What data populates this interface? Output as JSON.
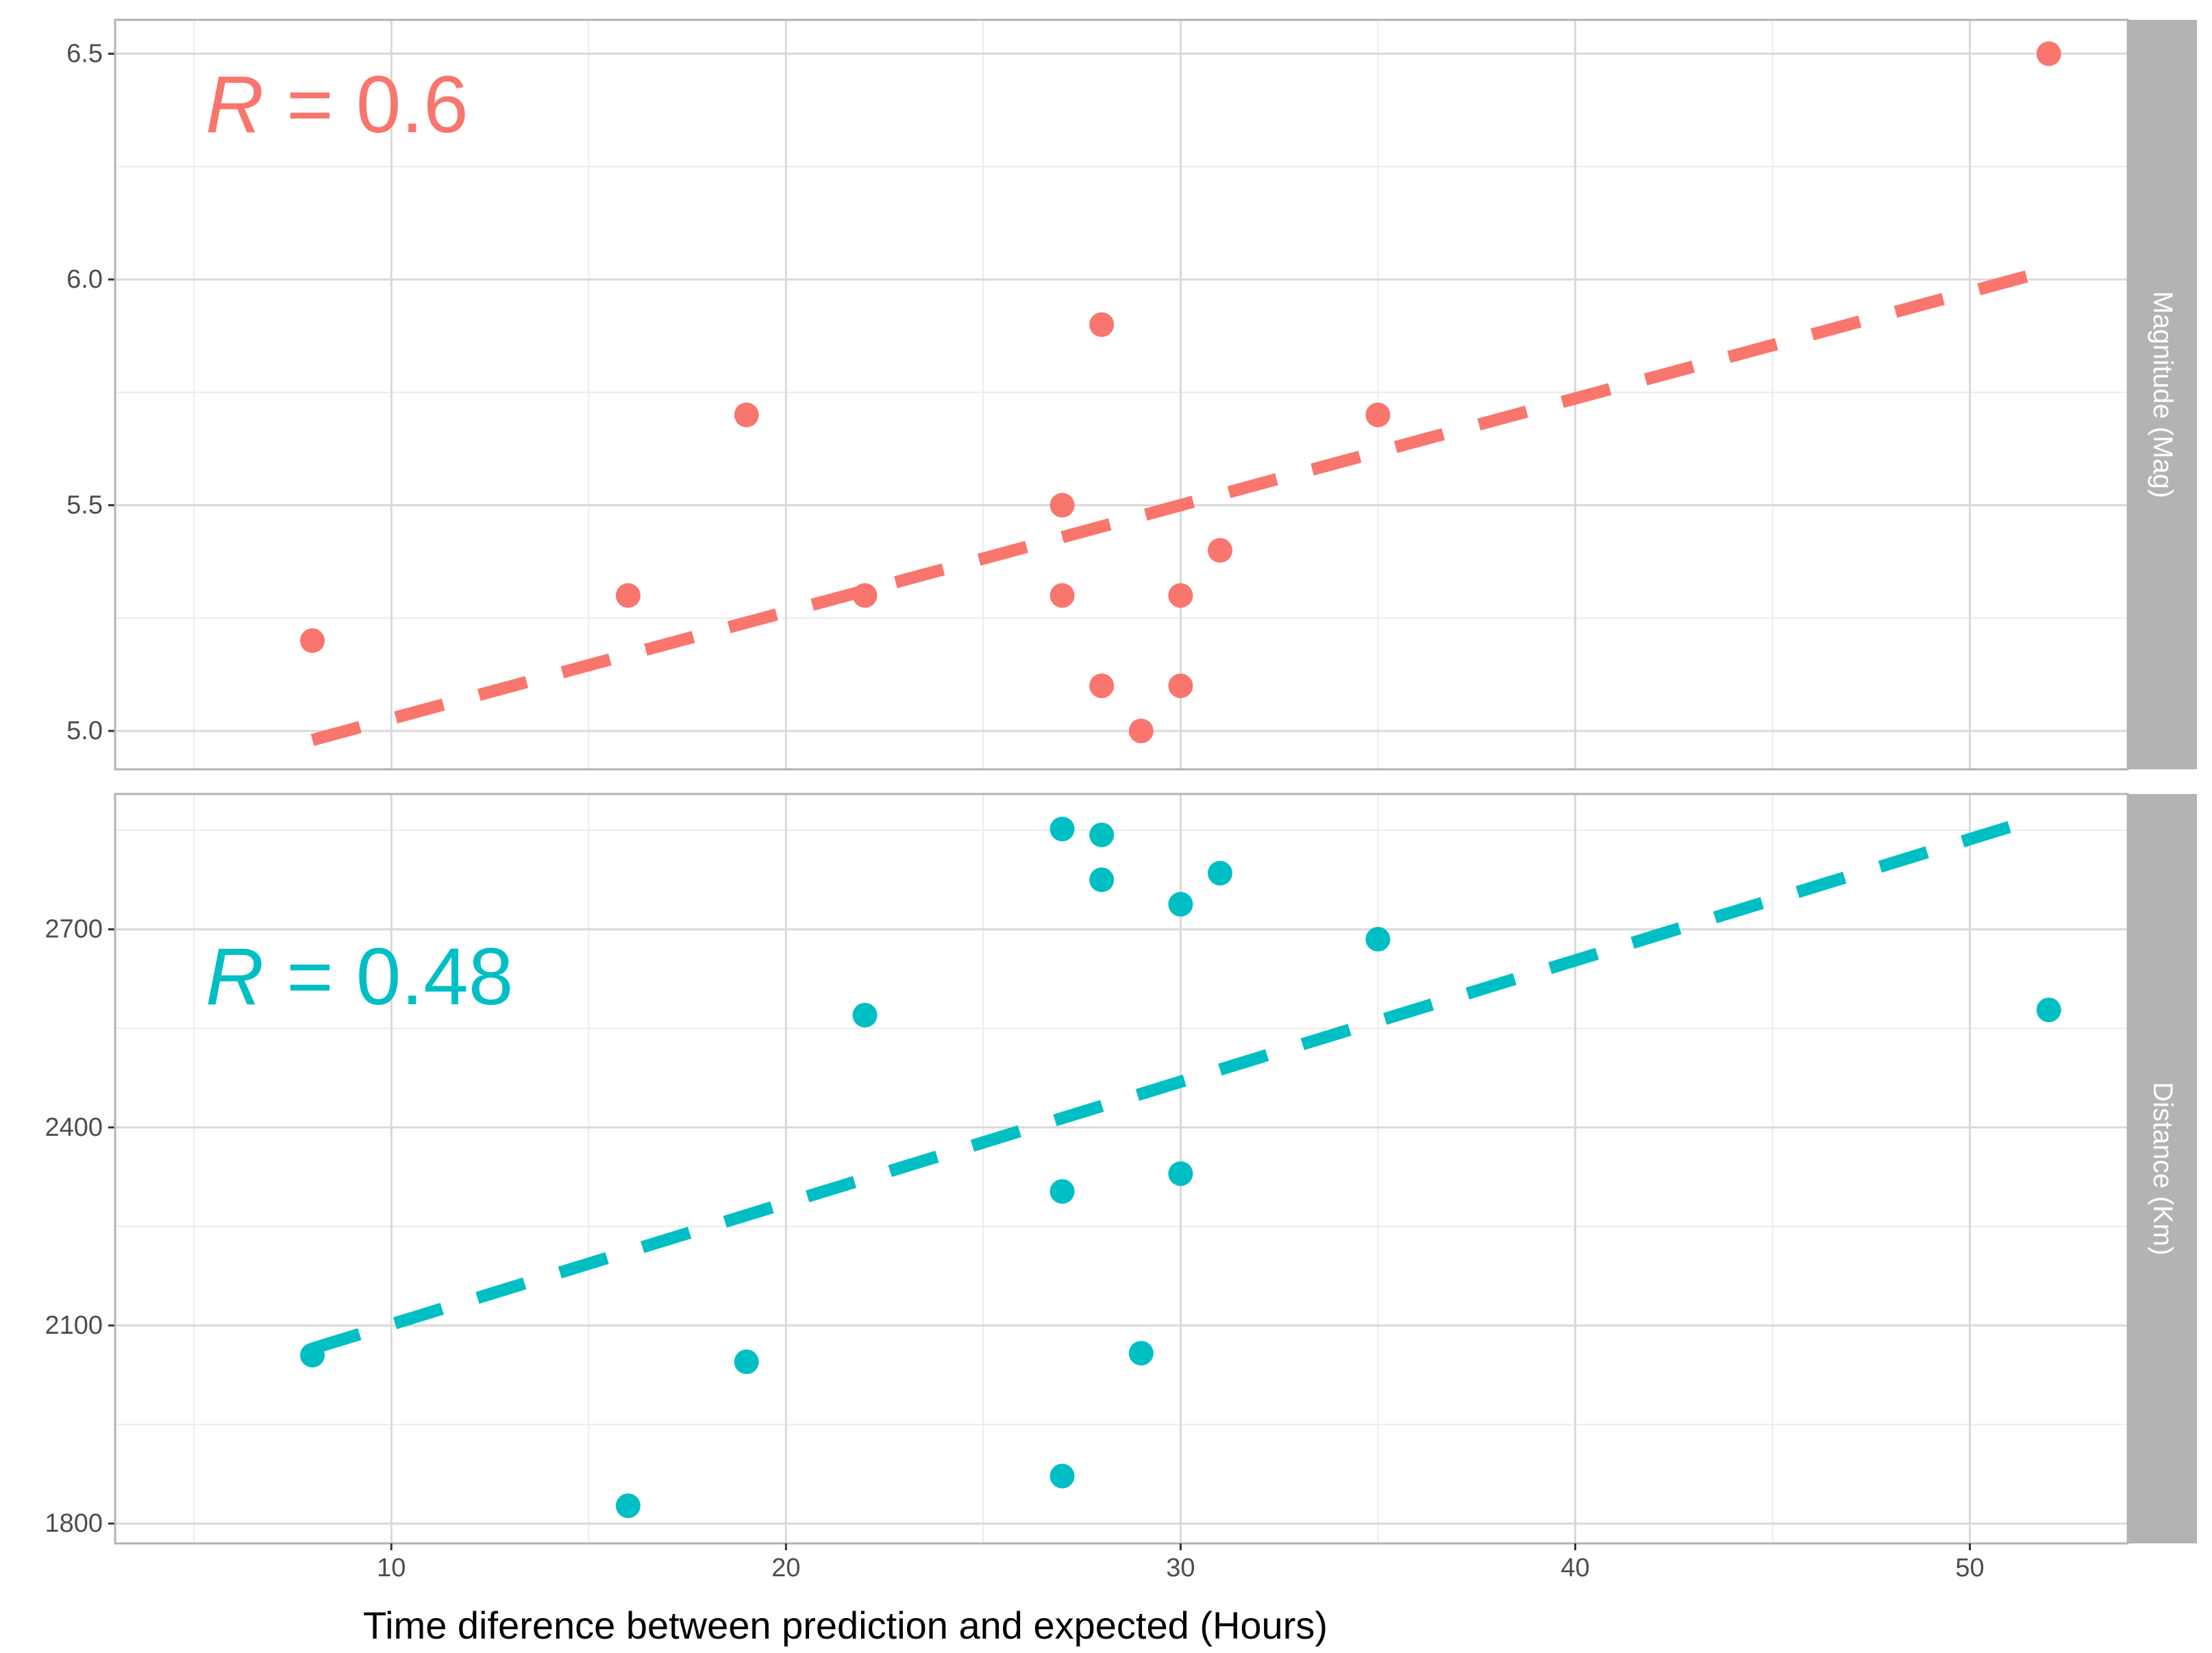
{
  "chart_data": {
    "type": "scatter",
    "xlabel": "Time diference between prediction and expected (Hours)",
    "xlim": [
      3,
      54
    ],
    "x_ticks": [
      10,
      20,
      30,
      40,
      50
    ],
    "x_tick_labels": [
      "10",
      "20",
      "30",
      "40",
      "50"
    ],
    "grid": true,
    "panels": [
      {
        "name": "magnitude",
        "strip_label": "Magnitude (Mag)",
        "color": "#F8766D",
        "ylim": [
          4.915,
          6.575
        ],
        "y_ticks": [
          5.0,
          5.5,
          6.0,
          6.5
        ],
        "y_tick_labels": [
          "5.0",
          "5.5",
          "6.0",
          "6.5"
        ],
        "r_symbol": "R",
        "r_text": " = 0.6",
        "points": {
          "x": [
            8,
            16,
            19,
            22,
            27,
            27,
            28,
            28,
            29,
            30,
            30,
            31,
            35,
            52
          ],
          "y": [
            5.2,
            5.3,
            5.7,
            5.3,
            5.5,
            5.3,
            5.9,
            5.1,
            5.0,
            5.3,
            5.1,
            5.4,
            5.7,
            6.5
          ]
        },
        "fit_line": {
          "x": [
            8,
            52
          ],
          "y": [
            4.98,
            6.02
          ]
        }
      },
      {
        "name": "distance",
        "strip_label": "Distance (Km)",
        "color": "#00BFC4",
        "ylim": [
          1770,
          2905
        ],
        "y_ticks": [
          1800,
          2100,
          2400,
          2700
        ],
        "y_tick_labels": [
          "1800",
          "2100",
          "2400",
          "2700"
        ],
        "r_symbol": "R",
        "r_text": " = 0.48",
        "points": {
          "x": [
            8,
            16,
            19,
            22,
            27,
            27,
            27,
            28,
            28,
            29,
            30,
            30,
            31,
            35,
            52
          ],
          "y": [
            2055,
            1827,
            2045,
            2570,
            1872,
            2303,
            2852,
            2843,
            2775,
            2058,
            2330,
            2738,
            2785,
            2685,
            2578
          ]
        },
        "fit_line": {
          "x": [
            8,
            51
          ],
          "y": [
            2065,
            2855
          ]
        }
      }
    ]
  }
}
